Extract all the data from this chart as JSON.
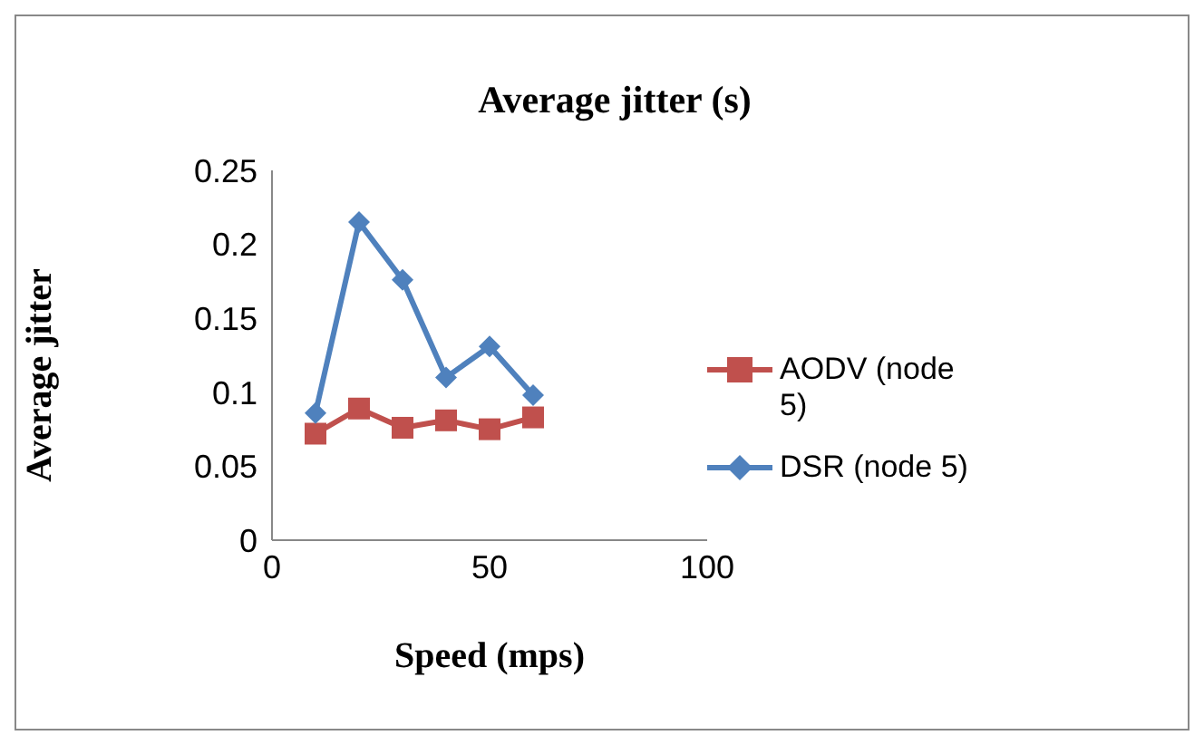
{
  "chart_data": {
    "type": "line",
    "title": "Average jitter (s)",
    "xlabel": "Speed (mps)",
    "ylabel": "Average jitter",
    "x": [
      10,
      20,
      30,
      40,
      50,
      60
    ],
    "series": [
      {
        "name": "AODV (node 5)",
        "color": "#c0504d",
        "marker": "square",
        "values": [
          0.072,
          0.089,
          0.076,
          0.081,
          0.075,
          0.083
        ]
      },
      {
        "name": "DSR (node 5)",
        "color": "#4f81bd",
        "marker": "diamond",
        "values": [
          0.086,
          0.215,
          0.176,
          0.11,
          0.131,
          0.098
        ]
      }
    ],
    "xlim": [
      0,
      100
    ],
    "xticks": [
      0,
      50,
      100
    ],
    "ylim": [
      0,
      0.25
    ],
    "yticks": [
      0,
      0.05,
      0.1,
      0.15,
      0.2,
      0.25
    ],
    "grid": false,
    "legend": "right"
  }
}
